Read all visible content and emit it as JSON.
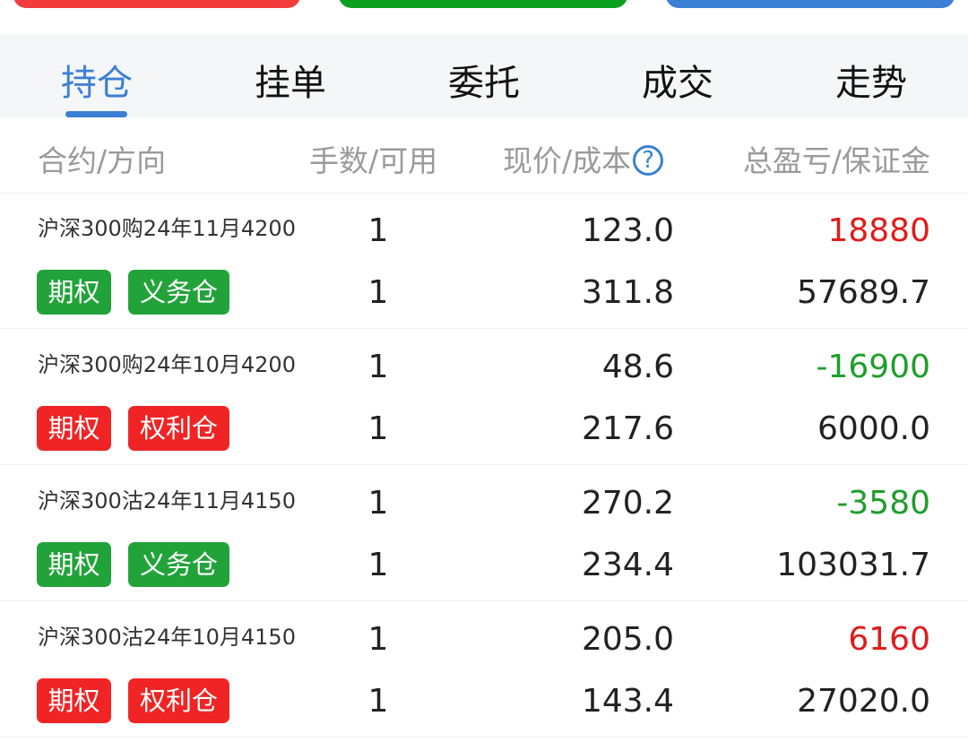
{
  "top_buttons": [
    {
      "color": "#f23b3b"
    },
    {
      "color": "#0aa01e"
    },
    {
      "color": "#3b7fd4"
    }
  ],
  "tabs": [
    {
      "label": "持仓",
      "active": true
    },
    {
      "label": "挂单"
    },
    {
      "label": "委托"
    },
    {
      "label": "成交"
    },
    {
      "label": "走势"
    }
  ],
  "header": {
    "contract": "合约/方向",
    "qty": "手数/可用",
    "price": "现价/成本",
    "help_icon": "?",
    "pnl": "总盈亏/保证金"
  },
  "colors": {
    "accent": "#3b7fd4",
    "profit": "#e01b1b",
    "loss": "#1e9e2a",
    "badge_green": "#22a33a",
    "badge_red": "#f02424"
  },
  "positions": [
    {
      "name": "沪深300购24年11月4200",
      "type": "期权",
      "side": "义务仓",
      "side_color": "green",
      "qty": "1",
      "available": "1",
      "price": "123.0",
      "cost": "311.8",
      "pnl": "18880",
      "pnl_sign": "profit",
      "margin": "57689.7"
    },
    {
      "name": "沪深300购24年10月4200",
      "type": "期权",
      "side": "权利仓",
      "side_color": "red",
      "qty": "1",
      "available": "1",
      "price": "48.6",
      "cost": "217.6",
      "pnl": "-16900",
      "pnl_sign": "loss",
      "margin": "6000.0"
    },
    {
      "name": "沪深300沽24年11月4150",
      "type": "期权",
      "side": "义务仓",
      "side_color": "green",
      "qty": "1",
      "available": "1",
      "price": "270.2",
      "cost": "234.4",
      "pnl": "-3580",
      "pnl_sign": "loss",
      "margin": "103031.7"
    },
    {
      "name": "沪深300沽24年10月4150",
      "type": "期权",
      "side": "权利仓",
      "side_color": "red",
      "qty": "1",
      "available": "1",
      "price": "205.0",
      "cost": "143.4",
      "pnl": "6160",
      "pnl_sign": "profit",
      "margin": "27020.0"
    }
  ]
}
